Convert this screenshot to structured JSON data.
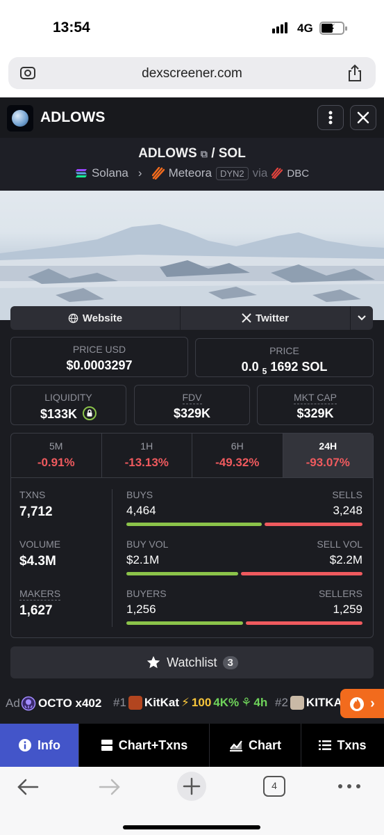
{
  "status": {
    "time": "13:54",
    "network": "4G"
  },
  "browser": {
    "url": "dexscreener.com",
    "tab_count": "4"
  },
  "token": {
    "name": "ADLOWS",
    "base": "ADLOWS",
    "separator": "/",
    "quote": "SOL",
    "chain": "Solana",
    "dex": "Meteora",
    "pool_type": "DYN2",
    "via_label": "via",
    "launchpad": "DBC"
  },
  "links": {
    "website": "Website",
    "twitter": "Twitter"
  },
  "price": {
    "usd_label": "PRICE USD",
    "usd_value": "$0.0003297",
    "native_label": "PRICE",
    "native_prefix": "0.0",
    "native_zeros": "5",
    "native_digits": "1692 SOL"
  },
  "metrics": [
    {
      "label": "LIQUIDITY",
      "value": "$133K"
    },
    {
      "label": "FDV",
      "value": "$329K"
    },
    {
      "label": "MKT CAP",
      "value": "$329K"
    }
  ],
  "periods": [
    {
      "label": "5M",
      "change": "-0.91%"
    },
    {
      "label": "1H",
      "change": "-13.13%"
    },
    {
      "label": "6H",
      "change": "-49.32%"
    },
    {
      "label": "24H",
      "change": "-93.07%"
    }
  ],
  "stats": {
    "txns_label": "TXNS",
    "txns": "7,712",
    "volume_label": "VOLUME",
    "volume": "$4.3M",
    "makers_label": "MAKERS",
    "makers": "1,627",
    "buys_label": "BUYS",
    "buys": "4,464",
    "sells_label": "SELLS",
    "sells": "3,248",
    "buys_ratio": 0.579,
    "buyvol_label": "BUY VOL",
    "buyvol": "$2.1M",
    "sellvol_label": "SELL VOL",
    "sellvol": "$2.2M",
    "buyvol_ratio": 0.48,
    "buyers_label": "BUYERS",
    "buyers": "1,256",
    "sellers_label": "SELLERS",
    "sellers": "1,259",
    "buyers_ratio": 0.5
  },
  "watchlist": {
    "label": "Watchlist",
    "count": "3"
  },
  "ticker": {
    "ad_label": "Ad",
    "ad_token": "OCTO x402",
    "item1_rank": "#1",
    "item1_name": "KitKat",
    "item1_boost": "100",
    "item1_pct": "4K%",
    "item1_age": "4h",
    "item2_rank": "#2",
    "item2_name": "KITKA"
  },
  "nav": [
    {
      "label": "Info"
    },
    {
      "label": "Chart+Txns"
    },
    {
      "label": "Chart"
    },
    {
      "label": "Txns"
    }
  ],
  "colors": {
    "accent": "#4355c9",
    "positive": "#8bc34a",
    "negative": "#ef5a5e",
    "fire": "#f26b1d"
  }
}
